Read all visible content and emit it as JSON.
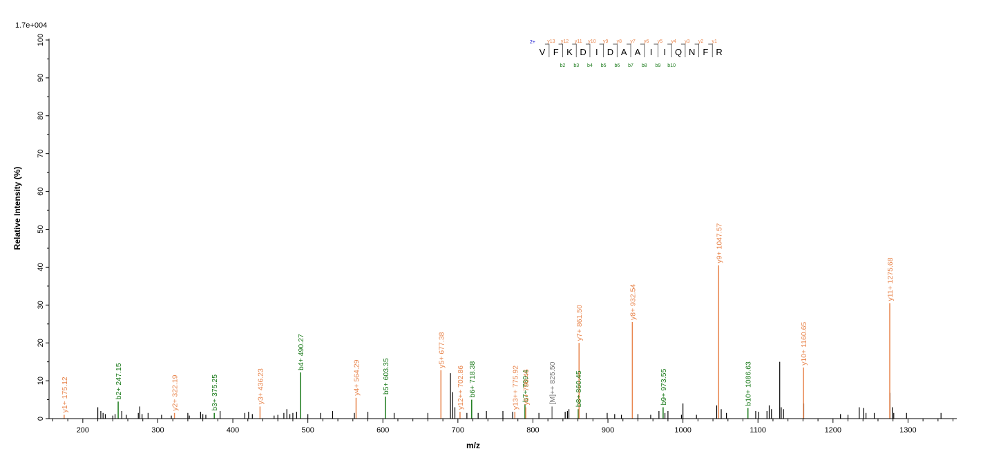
{
  "chart_data": {
    "type": "bar",
    "title": "",
    "xlabel": "m/z",
    "ylabel": "Relative   Intensity (%)",
    "max_intensity_label": "1.7e+004",
    "xlim": [
      155,
      1365
    ],
    "ylim": [
      0,
      100
    ],
    "x_ticks": [
      200,
      300,
      400,
      500,
      600,
      700,
      800,
      900,
      1000,
      1100,
      1200,
      1300
    ],
    "y_ticks": [
      0,
      10,
      20,
      30,
      40,
      50,
      60,
      70,
      80,
      90,
      100
    ],
    "colors": {
      "y": "#e8864e",
      "b": "#1a7a1a",
      "precursor": "#777777",
      "noise": "#000000",
      "charge": "#0000cc"
    },
    "labeled_peaks": [
      {
        "mz": 175.12,
        "intensity": 1.0,
        "label": "y1+ 175.12",
        "ion": "y"
      },
      {
        "mz": 247.15,
        "intensity": 4.5,
        "label": "b2+ 247.15",
        "ion": "b"
      },
      {
        "mz": 322.19,
        "intensity": 1.5,
        "label": "y2+ 322.19",
        "ion": "y"
      },
      {
        "mz": 375.25,
        "intensity": 1.5,
        "label": "b3+ 375.25",
        "ion": "b"
      },
      {
        "mz": 436.23,
        "intensity": 3.2,
        "label": "y3+ 436.23",
        "ion": "y"
      },
      {
        "mz": 490.27,
        "intensity": 12.2,
        "label": "b4+ 490.27",
        "ion": "b"
      },
      {
        "mz": 564.29,
        "intensity": 5.5,
        "label": "y4+ 564.29",
        "ion": "y"
      },
      {
        "mz": 603.35,
        "intensity": 5.8,
        "label": "b5+ 603.35",
        "ion": "b"
      },
      {
        "mz": 677.38,
        "intensity": 12.8,
        "label": "y5+ 677.38",
        "ion": "y"
      },
      {
        "mz": 702.86,
        "intensity": 1.8,
        "label": "y12++ 702.86",
        "ion": "y"
      },
      {
        "mz": 718.38,
        "intensity": 5.0,
        "label": "b6+ 718.38",
        "ion": "b"
      },
      {
        "mz": 775.92,
        "intensity": 1.8,
        "label": "y13++ 775.92",
        "ion": "y"
      },
      {
        "mz": 789.4,
        "intensity": 3.8,
        "label": "b7+ 789.4",
        "ion": "b"
      },
      {
        "mz": 790.46,
        "intensity": 3.0,
        "label": "y6+ 790.46",
        "ion": "y"
      },
      {
        "mz": 825.5,
        "intensity": 3.2,
        "label": "[M]++ 825.50",
        "ion": "precursor"
      },
      {
        "mz": 860.45,
        "intensity": 2.5,
        "label": "b8+ 860.45",
        "ion": "b"
      },
      {
        "mz": 861.5,
        "intensity": 20.0,
        "label": "y7+ 861.50",
        "ion": "y"
      },
      {
        "mz": 932.54,
        "intensity": 25.5,
        "label": "y8+ 932.54",
        "ion": "y"
      },
      {
        "mz": 973.55,
        "intensity": 3.0,
        "label": "b9+ 973.55",
        "ion": "b"
      },
      {
        "mz": 1047.57,
        "intensity": 40.5,
        "label": "y9+ 1047.57",
        "ion": "y"
      },
      {
        "mz": 1086.63,
        "intensity": 2.8,
        "label": "b10+ 1086.63",
        "ion": "b"
      },
      {
        "mz": 1160.65,
        "intensity": 13.5,
        "label": "y10+ 1160.65",
        "ion": "y"
      },
      {
        "mz": 1275.68,
        "intensity": 30.5,
        "label": "y11+ 1275.68",
        "ion": "y"
      }
    ],
    "unlabeled_peaks": [
      [
        220,
        3.0
      ],
      [
        224,
        2.0
      ],
      [
        227,
        1.5
      ],
      [
        230,
        1.2
      ],
      [
        240,
        0.8
      ],
      [
        243,
        1.2
      ],
      [
        252,
        2.0
      ],
      [
        258,
        1.0
      ],
      [
        274,
        1.5
      ],
      [
        276,
        3.2
      ],
      [
        279,
        1.2
      ],
      [
        287,
        1.5
      ],
      [
        305,
        1.0
      ],
      [
        318,
        0.8
      ],
      [
        340,
        1.5
      ],
      [
        342,
        0.8
      ],
      [
        357,
        1.8
      ],
      [
        360,
        1.2
      ],
      [
        364,
        1.0
      ],
      [
        383,
        2.0
      ],
      [
        416,
        1.5
      ],
      [
        421,
        1.8
      ],
      [
        426,
        1.2
      ],
      [
        455,
        0.8
      ],
      [
        460,
        1.0
      ],
      [
        468,
        1.5
      ],
      [
        472,
        2.5
      ],
      [
        476,
        1.2
      ],
      [
        480,
        1.5
      ],
      [
        485,
        1.8
      ],
      [
        500,
        1.2
      ],
      [
        517,
        1.5
      ],
      [
        533,
        2.0
      ],
      [
        562,
        1.5
      ],
      [
        580,
        1.8
      ],
      [
        615,
        1.5
      ],
      [
        660,
        1.5
      ],
      [
        690,
        12.0
      ],
      [
        693,
        7.0
      ],
      [
        696,
        3.0
      ],
      [
        712,
        1.5
      ],
      [
        727,
        1.5
      ],
      [
        738,
        2.0
      ],
      [
        760,
        2.0
      ],
      [
        773,
        1.8
      ],
      [
        808,
        1.5
      ],
      [
        843,
        1.8
      ],
      [
        846,
        2.0
      ],
      [
        848,
        2.5
      ],
      [
        871,
        1.5
      ],
      [
        899,
        1.5
      ],
      [
        909,
        1.2
      ],
      [
        918,
        1.0
      ],
      [
        940,
        1.2
      ],
      [
        957,
        1.0
      ],
      [
        968,
        2.0
      ],
      [
        976,
        1.5
      ],
      [
        980,
        2.0
      ],
      [
        998,
        1.0
      ],
      [
        1000,
        4.0
      ],
      [
        1018,
        1.0
      ],
      [
        1045,
        3.5
      ],
      [
        1051,
        2.5
      ],
      [
        1058,
        1.5
      ],
      [
        1097,
        2.0
      ],
      [
        1101,
        1.8
      ],
      [
        1112,
        2.0
      ],
      [
        1115,
        3.5
      ],
      [
        1118,
        2.5
      ],
      [
        1129,
        15.0
      ],
      [
        1131,
        3.0
      ],
      [
        1134,
        2.5
      ],
      [
        1161,
        4.0
      ],
      [
        1210,
        1.2
      ],
      [
        1220,
        1.0
      ],
      [
        1235,
        3.0
      ],
      [
        1241,
        2.8
      ],
      [
        1244,
        1.5
      ],
      [
        1255,
        1.5
      ],
      [
        1276,
        6.8
      ],
      [
        1279,
        3.0
      ],
      [
        1281,
        1.5
      ],
      [
        1298,
        1.5
      ],
      [
        1344,
        1.5
      ]
    ],
    "sequence": {
      "charge": "2+",
      "residues": [
        "V",
        "F",
        "K",
        "D",
        "I",
        "D",
        "A",
        "A",
        "I",
        "I",
        "Q",
        "N",
        "F",
        "R"
      ],
      "y_ions": [
        "y13",
        "y12",
        "y11",
        "y10",
        "y9",
        "y8",
        "y7",
        "y6",
        "y5",
        "y4",
        "y3",
        "y2",
        "y1"
      ],
      "b_ions": [
        "b2",
        "b3",
        "b4",
        "b5",
        "b6",
        "b7",
        "b8",
        "b9",
        "b10"
      ]
    }
  }
}
